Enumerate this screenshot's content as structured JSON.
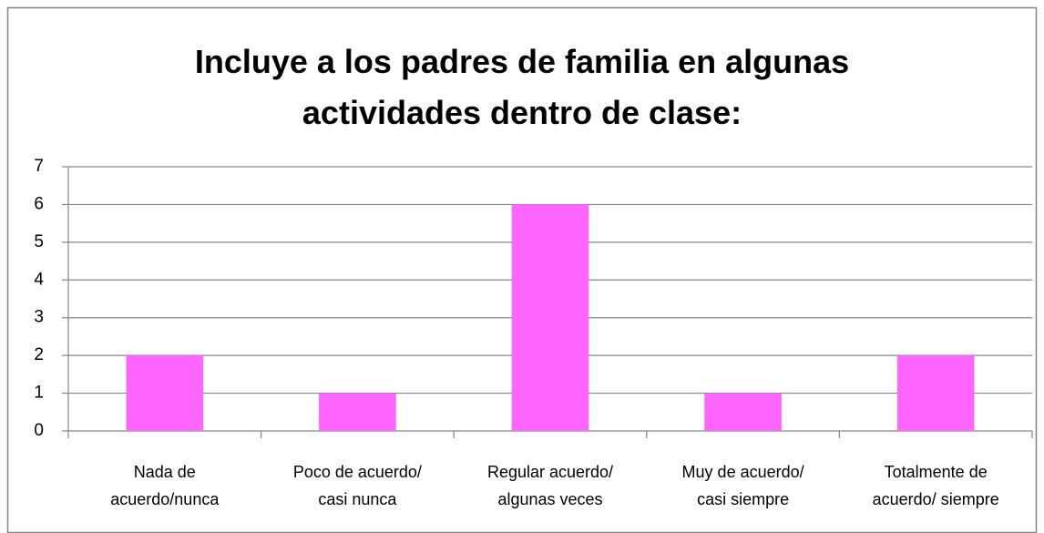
{
  "chart_data": {
    "type": "bar",
    "title": "Incluye a los padres de familia en algunas actividades dentro de clase:",
    "categories": [
      "Nada de acuerdo/nunca",
      "Poco de acuerdo/ casi nunca",
      "Regular acuerdo/ algunas veces",
      "Muy de acuerdo/ casi siempre",
      "Totalmente de acuerdo/ siempre"
    ],
    "values": [
      2,
      1,
      6,
      1,
      2
    ],
    "color": "#ff66ff",
    "ylim": [
      0,
      7
    ],
    "yticks": [
      0,
      1,
      2,
      3,
      4,
      5,
      6,
      7
    ],
    "grid": true
  }
}
